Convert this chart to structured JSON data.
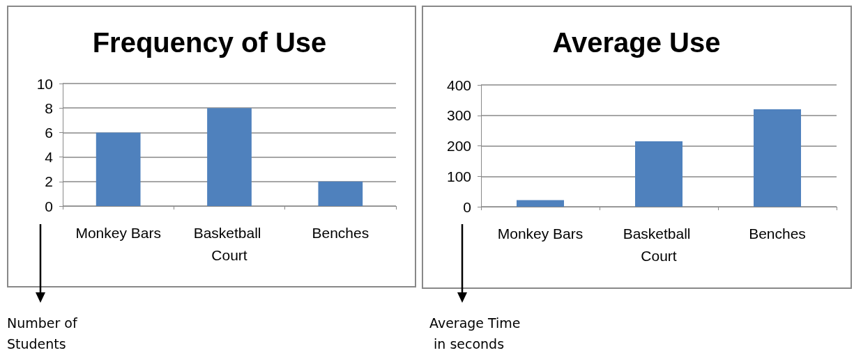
{
  "chart_data": [
    {
      "type": "bar",
      "title": "Frequency of Use",
      "annotations": [
        "Number of Students"
      ],
      "categories": [
        "Monkey Bars",
        "Basketball Court",
        "Benches"
      ],
      "values": [
        6,
        8,
        2
      ],
      "color": "#4f81bd",
      "ylim": [
        0,
        10
      ],
      "yticks": [
        0,
        2,
        4,
        6,
        8,
        10
      ],
      "grid": "y"
    },
    {
      "type": "bar",
      "title": "Average Use",
      "annotations": [
        "Average Time in seconds"
      ],
      "categories": [
        "Monkey Bars",
        "Basketball Court",
        "Benches"
      ],
      "values": [
        22,
        215,
        320
      ],
      "color": "#4f81bd",
      "ylim": [
        0,
        400
      ],
      "yticks": [
        0,
        100,
        200,
        300,
        400
      ],
      "grid": "y"
    }
  ]
}
